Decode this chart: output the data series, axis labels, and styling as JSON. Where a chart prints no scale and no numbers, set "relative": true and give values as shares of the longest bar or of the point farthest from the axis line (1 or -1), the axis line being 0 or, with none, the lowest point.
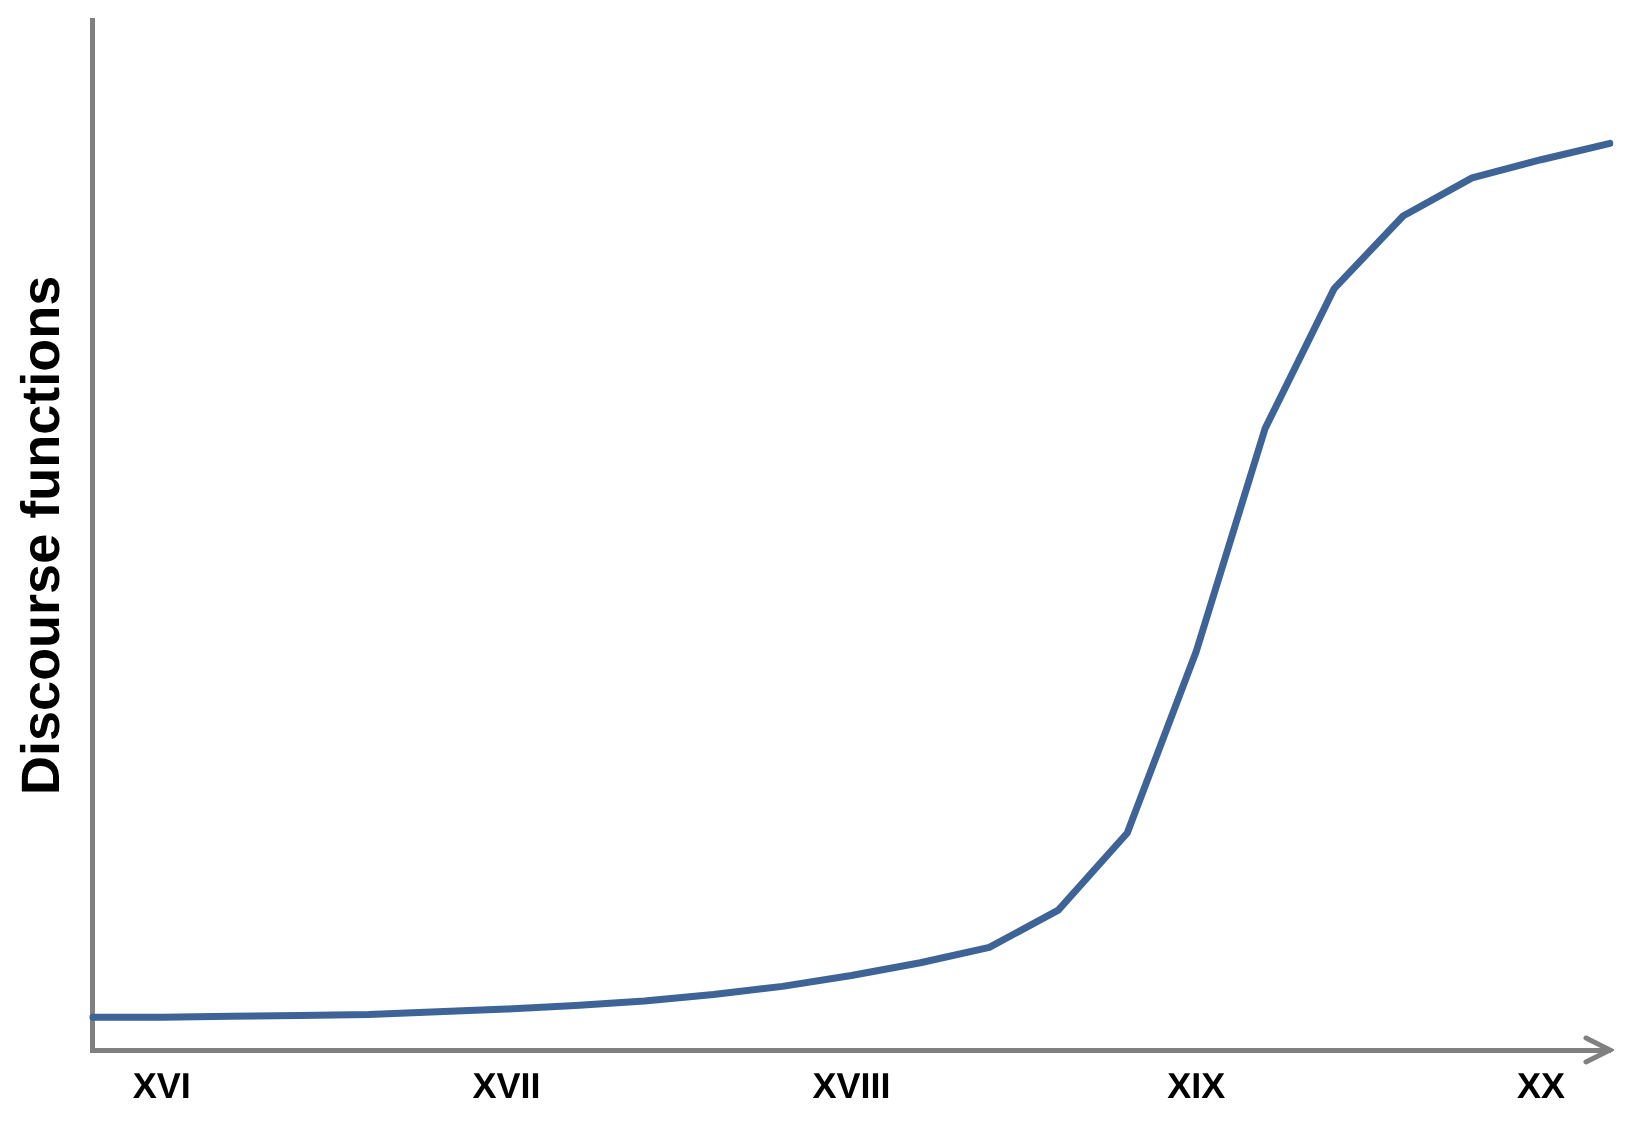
{
  "chart_data": {
    "type": "line",
    "ylabel": "Discourse functions",
    "relative": true,
    "categories": [
      null,
      "XVI",
      null,
      null,
      null,
      null,
      "XVII",
      null,
      null,
      null,
      null,
      "XVIII",
      null,
      null,
      null,
      null,
      "XIX",
      null,
      null,
      null,
      null,
      "XX",
      null
    ],
    "grid": false,
    "legend": false,
    "marker": "none",
    "line_style": "solid",
    "series": [
      {
        "color": "#3e6396",
        "values": [
          0.037,
          0.037,
          0.038,
          0.039,
          0.04,
          0.043,
          0.046,
          0.05,
          0.055,
          0.062,
          0.071,
          0.083,
          0.097,
          0.114,
          0.155,
          0.24,
          0.44,
          0.686,
          0.84,
          0.92,
          0.962,
          0.982,
          1
        ]
      }
    ]
  }
}
